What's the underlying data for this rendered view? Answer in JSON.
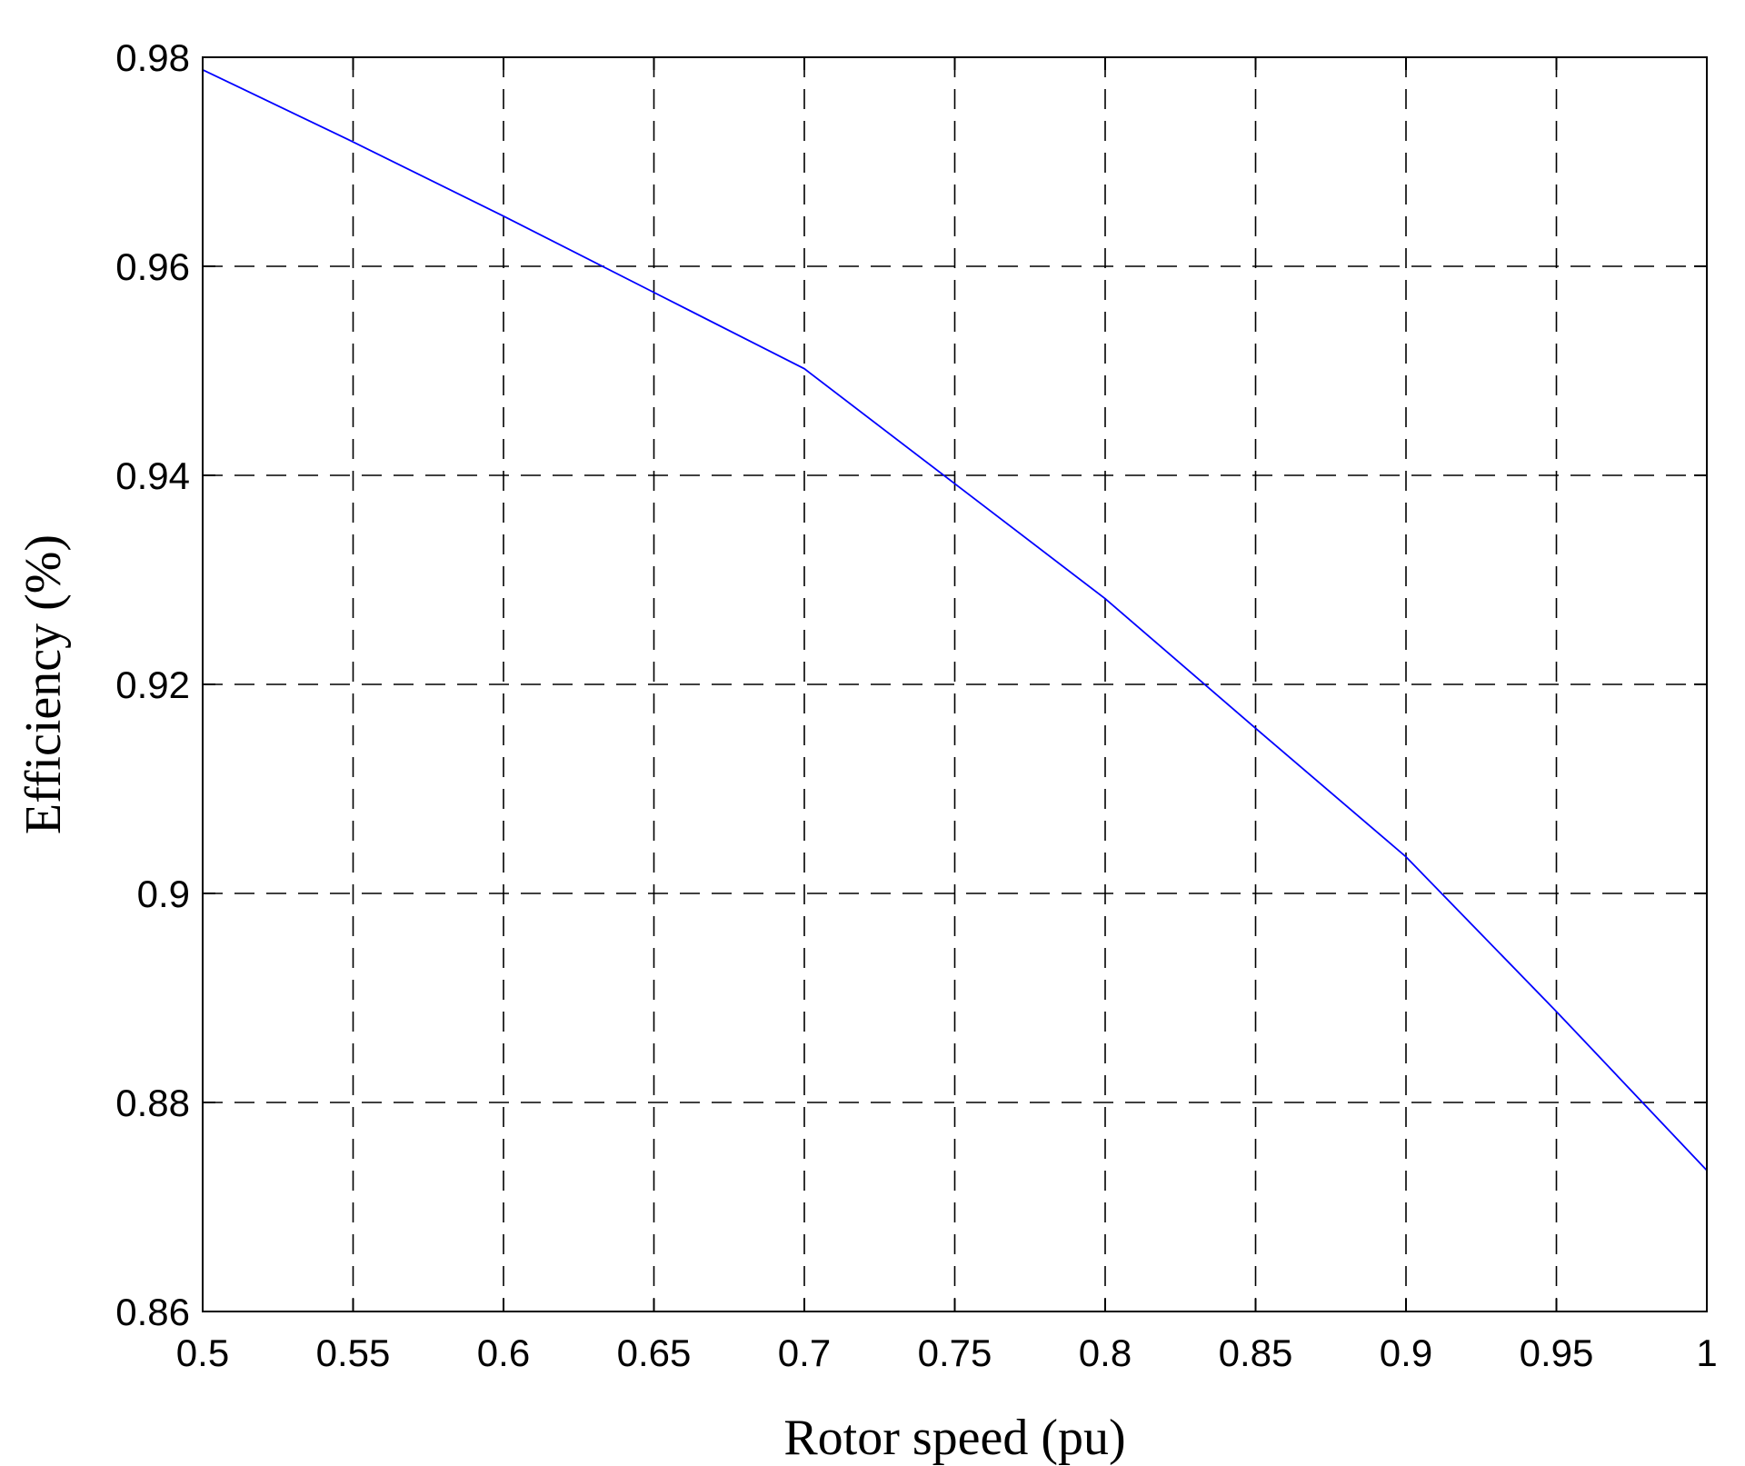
{
  "chart_data": {
    "type": "line",
    "title": "",
    "xlabel": "Rotor speed (pu)",
    "ylabel": "Efficiency (%)",
    "xlim": [
      0.5,
      1
    ],
    "ylim": [
      0.86,
      0.98
    ],
    "xticks": [
      "0.5",
      "0.55",
      "0.6",
      "0.65",
      "0.7",
      "0.75",
      "0.8",
      "0.85",
      "0.9",
      "0.95",
      "1"
    ],
    "yticks": [
      "0.86",
      "0.88",
      "0.9",
      "0.92",
      "0.94",
      "0.96",
      "0.98"
    ],
    "grid": true,
    "grid_style": "dashed",
    "series": [
      {
        "color": "#0000ff",
        "x": [
          0.5,
          0.55,
          0.6,
          0.65,
          0.7,
          0.75,
          0.8,
          0.85,
          0.9,
          0.95,
          1.0
        ],
        "y": [
          0.9788,
          0.9719,
          0.9648,
          0.9575,
          0.9502,
          0.9392,
          0.9282,
          0.9158,
          0.9035,
          0.8887,
          0.8735
        ]
      }
    ]
  }
}
